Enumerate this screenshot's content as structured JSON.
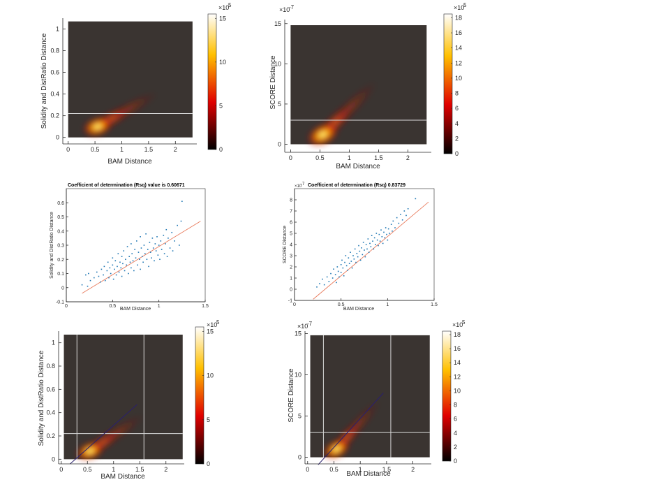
{
  "chart_data": [
    {
      "id": "p1",
      "type": "heatmap",
      "title": "",
      "xlabel": "BAM Distance",
      "ylabel": "Solidity and DistRatio Distance",
      "xlim": [
        -0.1,
        2.4
      ],
      "ylim": [
        -0.06,
        1.1
      ],
      "xticks": [
        0,
        0.5,
        1,
        1.5,
        2
      ],
      "xtick_labels": [
        "0",
        "0.5",
        "1",
        "1.5",
        "2"
      ],
      "yticks": [
        0,
        0.2,
        0.4,
        0.6,
        0.8,
        1
      ],
      "ytick_labels": [
        "0",
        "0.2",
        "0.4",
        "0.6",
        "0.8",
        "1"
      ],
      "y_exponent": "",
      "bg_rect": {
        "x0": 0.0,
        "x1": 2.32,
        "y0": 0.0,
        "y1": 1.07
      },
      "density_peak": {
        "x": 0.55,
        "y": 0.1
      },
      "density_trend": {
        "slope": 0.28
      },
      "hlines": [
        0.22
      ],
      "vlines": [],
      "fit_line": null,
      "colorbar": {
        "ticks": [
          0,
          5,
          10,
          15
        ],
        "tick_labels": [
          "0",
          "5",
          "10",
          "15"
        ],
        "max": 15.5,
        "exponent_base": "×10",
        "exponent_power": "5"
      }
    },
    {
      "id": "p2",
      "type": "heatmap",
      "title": "",
      "xlabel": "BAM Distance",
      "ylabel": "SCORE Distance",
      "xlim": [
        -0.1,
        2.4
      ],
      "ylim": [
        -1.0,
        15.5
      ],
      "xticks": [
        0,
        0.5,
        1,
        1.5,
        2
      ],
      "xtick_labels": [
        "0",
        "0.5",
        "1",
        "1.5",
        "2"
      ],
      "yticks": [
        0,
        5,
        10,
        15
      ],
      "ytick_labels": [
        "0",
        "5",
        "10",
        "15"
      ],
      "y_exponent": "×10",
      "y_exponent_power": "-7",
      "bg_rect": {
        "x0": 0.0,
        "x1": 2.32,
        "y0": 0.0,
        "y1": 14.8
      },
      "density_peak": {
        "x": 0.55,
        "y": 1.2
      },
      "density_trend": {
        "slope": 7.2
      },
      "hlines": [
        3.0
      ],
      "vlines": [],
      "fit_line": null,
      "colorbar": {
        "ticks": [
          0,
          2,
          4,
          6,
          8,
          10,
          12,
          14,
          16,
          18
        ],
        "tick_labels": [
          "0",
          "2",
          "4",
          "6",
          "8",
          "10",
          "12",
          "14",
          "16",
          "18"
        ],
        "max": 18.5,
        "exponent_base": "×10",
        "exponent_power": "5"
      }
    },
    {
      "id": "p3",
      "type": "scatter",
      "title": "Coefficient of determination (Rsq) value is  0.60671",
      "xlabel": "BAM Distance",
      "ylabel": "Solidity and DistRatio Distance",
      "xlim": [
        0,
        1.5
      ],
      "ylim": [
        -0.1,
        0.7
      ],
      "xticks": [
        0,
        0.5,
        1,
        1.5
      ],
      "xtick_labels": [
        "0",
        "0.5",
        "1",
        "1.5"
      ],
      "yticks": [
        -0.1,
        0,
        0.1,
        0.2,
        0.3,
        0.4,
        0.5,
        0.6
      ],
      "ytick_labels": [
        "-0.1",
        "0",
        "0.1",
        "0.2",
        "0.3",
        "0.4",
        "0.5",
        "0.6"
      ],
      "y_exponent": "",
      "fit_line": {
        "x0": 0.17,
        "y0": -0.04,
        "x1": 1.45,
        "y1": 0.47
      },
      "sample_points": [
        [
          0.17,
          0.02
        ],
        [
          0.21,
          0.09
        ],
        [
          0.24,
          0.1
        ],
        [
          0.23,
          0.01
        ],
        [
          0.26,
          0.05
        ],
        [
          0.3,
          0.07
        ],
        [
          0.33,
          0.11
        ],
        [
          0.35,
          0.08
        ],
        [
          0.37,
          0.04
        ],
        [
          0.38,
          0.13
        ],
        [
          0.4,
          0.09
        ],
        [
          0.41,
          0.15
        ],
        [
          0.42,
          0.05
        ],
        [
          0.44,
          0.12
        ],
        [
          0.45,
          0.18
        ],
        [
          0.46,
          0.07
        ],
        [
          0.47,
          0.14
        ],
        [
          0.48,
          0.1
        ],
        [
          0.5,
          0.16
        ],
        [
          0.5,
          0.21
        ],
        [
          0.51,
          0.06
        ],
        [
          0.52,
          0.13
        ],
        [
          0.53,
          0.19
        ],
        [
          0.54,
          0.09
        ],
        [
          0.55,
          0.15
        ],
        [
          0.56,
          0.24
        ],
        [
          0.57,
          0.11
        ],
        [
          0.58,
          0.18
        ],
        [
          0.59,
          0.14
        ],
        [
          0.6,
          0.22
        ],
        [
          0.6,
          0.08
        ],
        [
          0.61,
          0.17
        ],
        [
          0.62,
          0.26
        ],
        [
          0.63,
          0.12
        ],
        [
          0.64,
          0.2
        ],
        [
          0.65,
          0.16
        ],
        [
          0.66,
          0.29
        ],
        [
          0.67,
          0.1
        ],
        [
          0.68,
          0.22
        ],
        [
          0.69,
          0.18
        ],
        [
          0.7,
          0.14
        ],
        [
          0.7,
          0.31
        ],
        [
          0.71,
          0.24
        ],
        [
          0.72,
          0.19
        ],
        [
          0.73,
          0.12
        ],
        [
          0.74,
          0.27
        ],
        [
          0.75,
          0.21
        ],
        [
          0.76,
          0.33
        ],
        [
          0.77,
          0.16
        ],
        [
          0.78,
          0.25
        ],
        [
          0.79,
          0.2
        ],
        [
          0.8,
          0.36
        ],
        [
          0.8,
          0.13
        ],
        [
          0.81,
          0.28
        ],
        [
          0.82,
          0.22
        ],
        [
          0.83,
          0.18
        ],
        [
          0.84,
          0.3
        ],
        [
          0.85,
          0.24
        ],
        [
          0.86,
          0.38
        ],
        [
          0.87,
          0.2
        ],
        [
          0.88,
          0.27
        ],
        [
          0.89,
          0.15
        ],
        [
          0.9,
          0.32
        ],
        [
          0.91,
          0.25
        ],
        [
          0.92,
          0.21
        ],
        [
          0.93,
          0.35
        ],
        [
          0.94,
          0.28
        ],
        [
          0.95,
          0.19
        ],
        [
          0.96,
          0.31
        ],
        [
          0.97,
          0.26
        ],
        [
          0.98,
          0.36
        ],
        [
          0.99,
          0.23
        ],
        [
          1.0,
          0.3
        ],
        [
          1.01,
          0.2
        ],
        [
          1.02,
          0.33
        ],
        [
          1.03,
          0.27
        ],
        [
          1.05,
          0.37
        ],
        [
          1.06,
          0.24
        ],
        [
          1.07,
          0.31
        ],
        [
          1.08,
          0.41
        ],
        [
          1.09,
          0.22
        ],
        [
          1.1,
          0.35
        ],
        [
          1.12,
          0.28
        ],
        [
          1.14,
          0.39
        ],
        [
          1.15,
          0.26
        ],
        [
          1.17,
          0.33
        ],
        [
          1.2,
          0.44
        ],
        [
          1.22,
          0.3
        ],
        [
          1.24,
          0.47
        ],
        [
          1.25,
          0.61
        ]
      ]
    },
    {
      "id": "p4",
      "type": "scatter",
      "title": "Coefficient of determination (Rsq) 0.83729",
      "xlabel": "BAM Distance",
      "ylabel": "SCORE Distance",
      "xlim": [
        0,
        1.5
      ],
      "ylim": [
        -1,
        9
      ],
      "xticks": [
        0,
        0.5,
        1,
        1.5
      ],
      "xtick_labels": [
        "0",
        "0.5",
        "1",
        "1.5"
      ],
      "yticks": [
        -1,
        0,
        1,
        2,
        3,
        4,
        5,
        6,
        7,
        8
      ],
      "ytick_labels": [
        "-1",
        "0",
        "1",
        "2",
        "3",
        "4",
        "5",
        "6",
        "7",
        "8"
      ],
      "y_exponent": "×10",
      "y_exponent_power": "-7",
      "fit_line": {
        "x0": 0.2,
        "y0": -0.9,
        "x1": 1.44,
        "y1": 7.8
      },
      "sample_points": [
        [
          0.24,
          0.2
        ],
        [
          0.27,
          0.5
        ],
        [
          0.3,
          0.9
        ],
        [
          0.32,
          0.4
        ],
        [
          0.35,
          1.1
        ],
        [
          0.37,
          0.7
        ],
        [
          0.39,
          1.4
        ],
        [
          0.41,
          1.0
        ],
        [
          0.42,
          1.8
        ],
        [
          0.44,
          1.3
        ],
        [
          0.45,
          0.6
        ],
        [
          0.46,
          2.0
        ],
        [
          0.47,
          1.6
        ],
        [
          0.48,
          1.1
        ],
        [
          0.5,
          2.2
        ],
        [
          0.5,
          1.5
        ],
        [
          0.51,
          2.6
        ],
        [
          0.52,
          1.9
        ],
        [
          0.53,
          1.2
        ],
        [
          0.54,
          2.4
        ],
        [
          0.55,
          3.0
        ],
        [
          0.56,
          2.1
        ],
        [
          0.57,
          1.7
        ],
        [
          0.58,
          2.8
        ],
        [
          0.59,
          2.3
        ],
        [
          0.6,
          3.3
        ],
        [
          0.61,
          2.5
        ],
        [
          0.62,
          1.9
        ],
        [
          0.63,
          3.0
        ],
        [
          0.64,
          2.7
        ],
        [
          0.65,
          3.6
        ],
        [
          0.66,
          2.4
        ],
        [
          0.67,
          3.2
        ],
        [
          0.68,
          2.9
        ],
        [
          0.69,
          3.9
        ],
        [
          0.7,
          3.4
        ],
        [
          0.71,
          2.6
        ],
        [
          0.72,
          3.7
        ],
        [
          0.73,
          3.1
        ],
        [
          0.74,
          4.2
        ],
        [
          0.75,
          3.5
        ],
        [
          0.76,
          2.9
        ],
        [
          0.77,
          4.0
        ],
        [
          0.78,
          3.6
        ],
        [
          0.79,
          4.5
        ],
        [
          0.8,
          3.3
        ],
        [
          0.81,
          4.1
        ],
        [
          0.82,
          3.8
        ],
        [
          0.83,
          4.8
        ],
        [
          0.84,
          4.3
        ],
        [
          0.85,
          3.6
        ],
        [
          0.86,
          4.6
        ],
        [
          0.87,
          4.0
        ],
        [
          0.88,
          5.0
        ],
        [
          0.89,
          4.4
        ],
        [
          0.9,
          3.9
        ],
        [
          0.91,
          4.9
        ],
        [
          0.92,
          4.3
        ],
        [
          0.93,
          5.3
        ],
        [
          0.94,
          4.7
        ],
        [
          0.95,
          4.1
        ],
        [
          0.96,
          5.1
        ],
        [
          0.97,
          4.6
        ],
        [
          0.98,
          5.5
        ],
        [
          0.99,
          4.9
        ],
        [
          1.0,
          4.4
        ],
        [
          1.01,
          5.4
        ],
        [
          1.02,
          5.0
        ],
        [
          1.04,
          5.8
        ],
        [
          1.05,
          5.2
        ],
        [
          1.06,
          6.1
        ],
        [
          1.08,
          5.5
        ],
        [
          1.1,
          6.4
        ],
        [
          1.12,
          5.9
        ],
        [
          1.14,
          6.7
        ],
        [
          1.16,
          6.2
        ],
        [
          1.18,
          7.0
        ],
        [
          1.2,
          6.6
        ],
        [
          1.22,
          7.2
        ],
        [
          1.3,
          8.1
        ]
      ]
    },
    {
      "id": "p5",
      "type": "heatmap",
      "title": "",
      "xlabel": "BAM Distance",
      "ylabel": "Solidity and DistRatio Distance",
      "xlim": [
        -0.05,
        2.35
      ],
      "ylim": [
        -0.04,
        1.1
      ],
      "xticks": [
        0,
        0.5,
        1,
        1.5,
        2
      ],
      "xtick_labels": [
        "0",
        "0.5",
        "1",
        "1.5",
        "2"
      ],
      "yticks": [
        0,
        0.2,
        0.4,
        0.6,
        0.8,
        1
      ],
      "ytick_labels": [
        "0",
        "0.2",
        "0.4",
        "0.6",
        "0.8",
        "1"
      ],
      "y_exponent": "",
      "bg_rect": {
        "x0": 0.05,
        "x1": 2.32,
        "y0": 0.0,
        "y1": 1.07
      },
      "density_peak": {
        "x": 0.55,
        "y": 0.07
      },
      "density_trend": {
        "slope": 0.3
      },
      "hlines": [
        0.22
      ],
      "vlines": [
        0.3,
        1.58
      ],
      "fit_line": {
        "x0": 0.17,
        "y0": -0.04,
        "x1": 1.45,
        "y1": 0.47
      },
      "colorbar": {
        "ticks": [
          0,
          5,
          10,
          15
        ],
        "tick_labels": [
          "0",
          "5",
          "10",
          "15"
        ],
        "max": 15.5,
        "exponent_base": "×10",
        "exponent_power": "5"
      }
    },
    {
      "id": "p6",
      "type": "heatmap",
      "title": "",
      "xlabel": "BAM Distance",
      "ylabel": "SCORE Distance",
      "xlim": [
        -0.05,
        2.35
      ],
      "ylim": [
        -0.8,
        15.3
      ],
      "xticks": [
        0,
        0.5,
        1,
        1.5,
        2
      ],
      "xtick_labels": [
        "0",
        "0.5",
        "1",
        "1.5",
        "2"
      ],
      "yticks": [
        0,
        5,
        10,
        15
      ],
      "ytick_labels": [
        "0",
        "5",
        "10",
        "15"
      ],
      "y_exponent": "×10",
      "y_exponent_power": "-7",
      "bg_rect": {
        "x0": 0.05,
        "x1": 2.32,
        "y0": 0.0,
        "y1": 14.8
      },
      "density_peak": {
        "x": 0.55,
        "y": 1.0
      },
      "density_trend": {
        "slope": 7.2
      },
      "hlines": [
        3.0
      ],
      "vlines": [
        0.3,
        1.58
      ],
      "fit_line": {
        "x0": 0.2,
        "y0": -0.9,
        "x1": 1.44,
        "y1": 7.8
      },
      "colorbar": {
        "ticks": [
          0,
          2,
          4,
          6,
          8,
          10,
          12,
          14,
          16,
          18
        ],
        "tick_labels": [
          "0",
          "2",
          "4",
          "6",
          "8",
          "10",
          "12",
          "14",
          "16",
          "18"
        ],
        "max": 18.5,
        "exponent_base": "×10",
        "exponent_power": "5"
      }
    }
  ],
  "colors": {
    "heatmap_background": "#3a3431",
    "scatter_points": "#1f77b4",
    "fit_line_scatter": "#e8795a",
    "fit_line_heatmap": "#2a1f6e",
    "reference_lines": "#d9d9d9"
  }
}
